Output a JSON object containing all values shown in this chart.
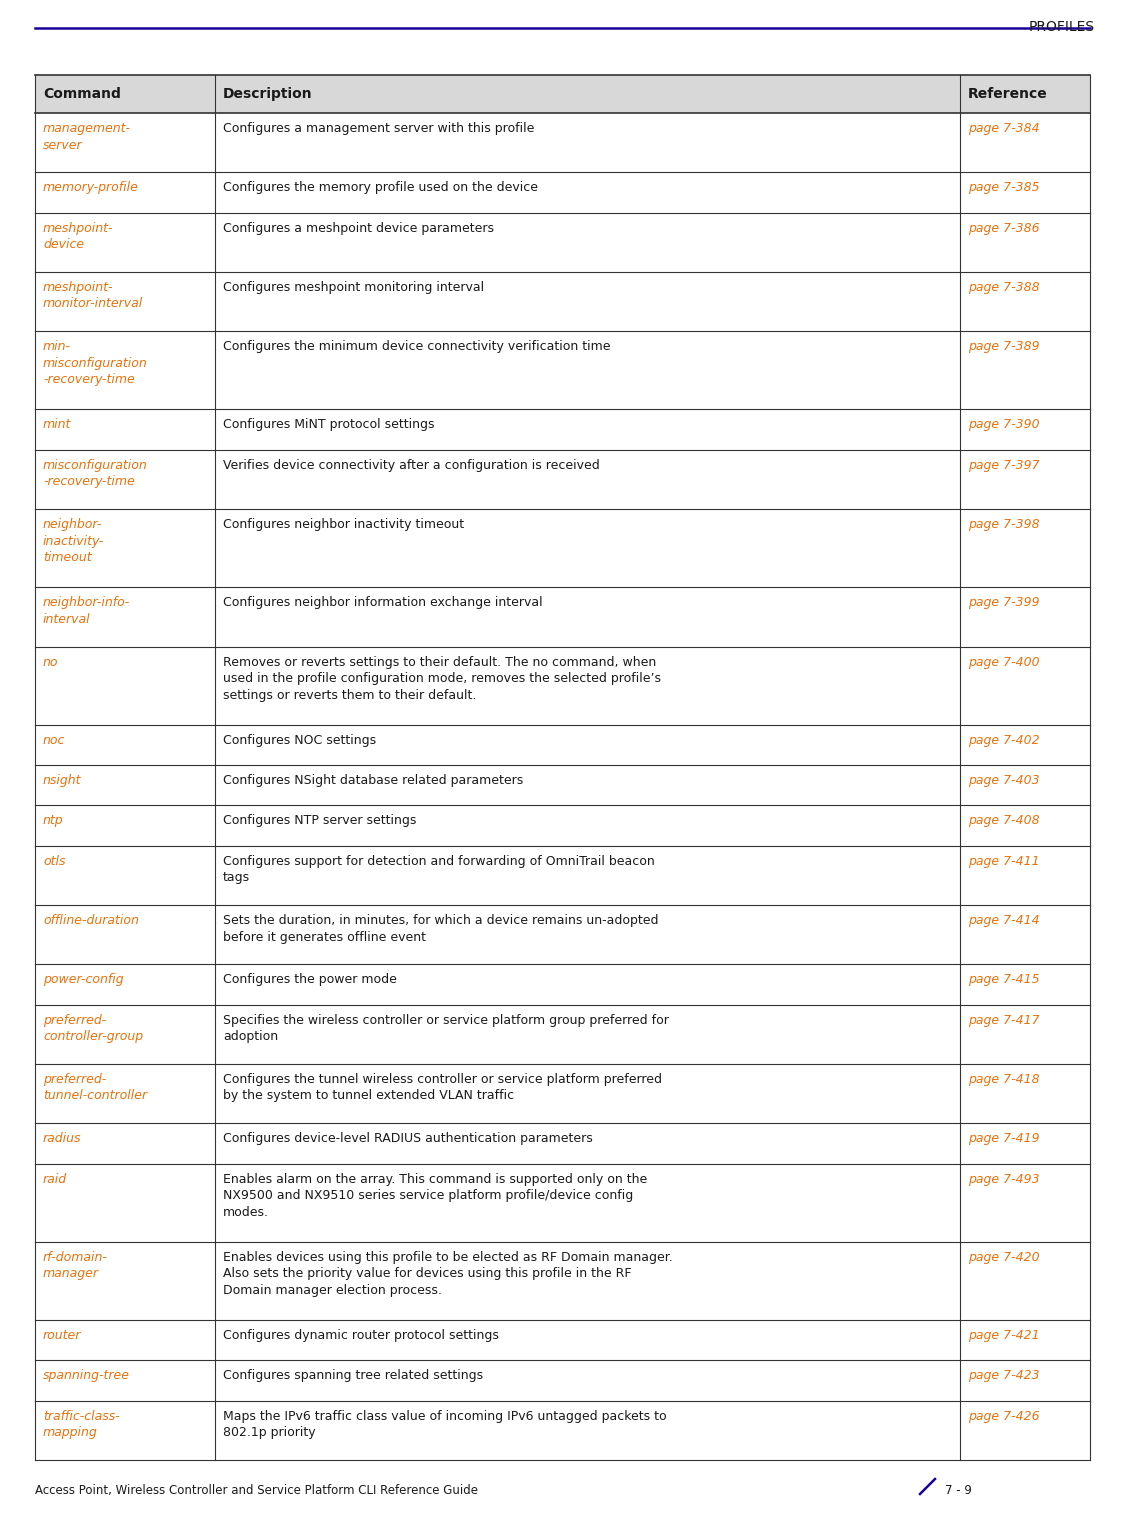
{
  "header_title": "PROFILES",
  "header_line_color": "#1a0099",
  "footer_text": "Access Point, Wireless Controller and Service Platform CLI Reference Guide",
  "footer_page": "7 - 9",
  "table_header": [
    "Command",
    "Description",
    "Reference"
  ],
  "rows": [
    {
      "command": "management-\nserver",
      "description": "Configures a management server with this profile",
      "reference": "page 7-384"
    },
    {
      "command": "memory-profile",
      "description": "Configures the memory profile used on the device",
      "reference": "page 7-385"
    },
    {
      "command": "meshpoint-\ndevice",
      "description": "Configures a meshpoint device parameters",
      "reference": "page 7-386"
    },
    {
      "command": "meshpoint-\nmonitor-interval",
      "description": "Configures meshpoint monitoring interval",
      "reference": "page 7-388"
    },
    {
      "command": "min-\nmisconfiguration\n-recovery-time",
      "description": "Configures the minimum device connectivity verification time",
      "reference": "page 7-389"
    },
    {
      "command": "mint",
      "description": "Configures MiNT protocol settings",
      "reference": "page 7-390"
    },
    {
      "command": "misconfiguration\n-recovery-time",
      "description": "Verifies device connectivity after a configuration is received",
      "reference": "page 7-397"
    },
    {
      "command": "neighbor-\ninactivity-\ntimeout",
      "description": "Configures neighbor inactivity timeout",
      "reference": "page 7-398"
    },
    {
      "command": "neighbor-info-\ninterval",
      "description": "Configures neighbor information exchange interval",
      "reference": "page 7-399"
    },
    {
      "command": "no",
      "description": "Removes or reverts settings to their default. The no command, when\nused in the profile configuration mode, removes the selected profile’s\nsettings or reverts them to their default.",
      "reference": "page 7-400"
    },
    {
      "command": "noc",
      "description": "Configures NOC settings",
      "reference": "page 7-402"
    },
    {
      "command": "nsight",
      "description": "Configures NSight database related parameters",
      "reference": "page 7-403"
    },
    {
      "command": "ntp",
      "description": "Configures NTP server settings",
      "reference": "page 7-408"
    },
    {
      "command": "otls",
      "description": "Configures support for detection and forwarding of OmniTrail beacon\ntags",
      "reference": "page 7-411"
    },
    {
      "command": "offline-duration",
      "description": "Sets the duration, in minutes, for which a device remains un-adopted\nbefore it generates offline event",
      "reference": "page 7-414"
    },
    {
      "command": "power-config",
      "description": "Configures the power mode",
      "reference": "page 7-415"
    },
    {
      "command": "preferred-\ncontroller-group",
      "description": "Specifies the wireless controller or service platform group preferred for\nadoption",
      "reference": "page 7-417"
    },
    {
      "command": "preferred-\ntunnel-controller",
      "description": "Configures the tunnel wireless controller or service platform preferred\nby the system to tunnel extended VLAN traffic",
      "reference": "page 7-418"
    },
    {
      "command": "radius",
      "description": "Configures device-level RADIUS authentication parameters",
      "reference": "page 7-419"
    },
    {
      "command": "raid",
      "description": "Enables alarm on the array. This command is supported only on the\nNX9500 and NX9510 series service platform profile/device config\nmodes.",
      "reference": "page 7-493"
    },
    {
      "command": "rf-domain-\nmanager",
      "description": "Enables devices using this profile to be elected as RF Domain manager.\nAlso sets the priority value for devices using this profile in the RF\nDomain manager election process.",
      "reference": "page 7-420"
    },
    {
      "command": "router",
      "description": "Configures dynamic router protocol settings",
      "reference": "page 7-421"
    },
    {
      "command": "spanning-tree",
      "description": "Configures spanning tree related settings",
      "reference": "page 7-423"
    },
    {
      "command": "traffic-class-\nmapping",
      "description": "Maps the IPv6 traffic class value of incoming IPv6 untagged packets to\n802.1p priority",
      "reference": "page 7-426"
    }
  ],
  "command_color": "#e8720c",
  "reference_color": "#e8720c",
  "header_bg": "#d8d8d8",
  "text_color": "#1a1a1a",
  "line_color": "#333333",
  "bg_color": "#ffffff",
  "font_size_body": 9.0,
  "font_size_header": 10.0,
  "font_size_title": 10.0,
  "font_size_footer": 8.5
}
